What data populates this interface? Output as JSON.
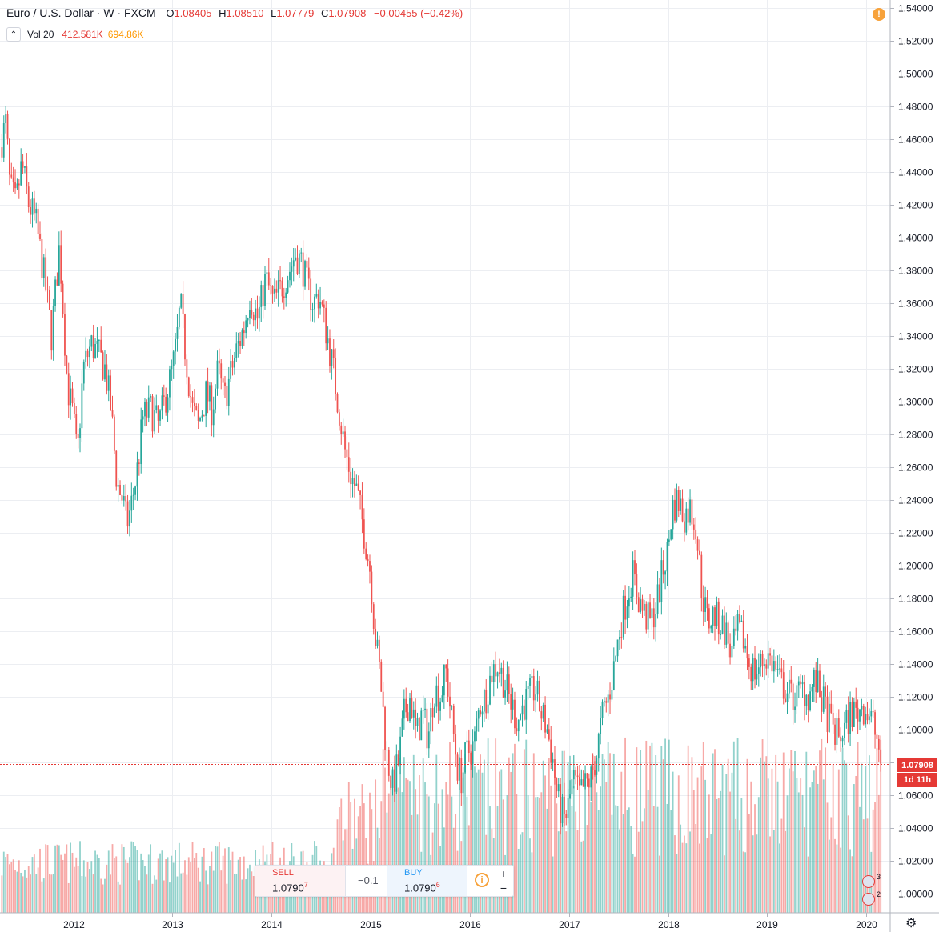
{
  "header": {
    "symbol": "Euro / U.S. Dollar · W · FXCM",
    "o_label": "O",
    "o_value": "1.08405",
    "h_label": "H",
    "h_value": "1.08510",
    "l_label": "L",
    "l_value": "1.07779",
    "c_label": "C",
    "c_value": "1.07908",
    "change": "−0.00455 (−0.42%)"
  },
  "volume_legend": {
    "label": "Vol 20",
    "value1": "412.581K",
    "value2": "694.86K"
  },
  "trade_panel": {
    "sell_label": "SELL",
    "sell_price": "1.0790",
    "sell_sup": "7",
    "spread": "−0.1",
    "buy_label": "BUY",
    "buy_price": "1.0790",
    "buy_sup": "6",
    "plus": "+",
    "minus": "−"
  },
  "price_tag": "1.07908",
  "countdown": "1d 11h",
  "events": {
    "count1": "3",
    "count2": "2"
  },
  "colors": {
    "up": "#26a69a",
    "down": "#ef5350",
    "grid": "#eceef2",
    "axis_text": "#131722"
  },
  "chart_data": {
    "type": "candlestick",
    "series_name": "Euro / U.S. Dollar",
    "y_axis": {
      "ylim": [
        0.9882,
        1.5448
      ],
      "ticks": [
        "1.54000",
        "1.52000",
        "1.50000",
        "1.48000",
        "1.46000",
        "1.44000",
        "1.42000",
        "1.40000",
        "1.38000",
        "1.36000",
        "1.34000",
        "1.32000",
        "1.30000",
        "1.28000",
        "1.26000",
        "1.24000",
        "1.22000",
        "1.20000",
        "1.18000",
        "1.16000",
        "1.14000",
        "1.12000",
        "1.10000",
        "1.08000",
        "1.06000",
        "1.04000",
        "1.02000",
        "1.00000"
      ]
    },
    "x_axis": {
      "labels": [
        "2012",
        "2013",
        "2014",
        "2015",
        "2016",
        "2017",
        "2018",
        "2019",
        "2020"
      ],
      "label_years": [
        2012,
        2013,
        2014,
        2015,
        2016,
        2017,
        2018,
        2019,
        2020
      ],
      "range_years": [
        2011.26,
        2020.24
      ]
    },
    "price_path": [
      [
        2011.26,
        1.455
      ],
      [
        2011.32,
        1.47
      ],
      [
        2011.36,
        1.43
      ],
      [
        2011.42,
        1.42
      ],
      [
        2011.48,
        1.445
      ],
      [
        2011.55,
        1.42
      ],
      [
        2011.62,
        1.41
      ],
      [
        2011.72,
        1.37
      ],
      [
        2011.78,
        1.34
      ],
      [
        2011.86,
        1.395
      ],
      [
        2011.94,
        1.31
      ],
      [
        2012.0,
        1.29
      ],
      [
        2012.04,
        1.265
      ],
      [
        2012.1,
        1.32
      ],
      [
        2012.18,
        1.335
      ],
      [
        2012.24,
        1.33
      ],
      [
        2012.32,
        1.32
      ],
      [
        2012.38,
        1.295
      ],
      [
        2012.44,
        1.25
      ],
      [
        2012.5,
        1.24
      ],
      [
        2012.54,
        1.225
      ],
      [
        2012.58,
        1.235
      ],
      [
        2012.65,
        1.26
      ],
      [
        2012.7,
        1.29
      ],
      [
        2012.78,
        1.295
      ],
      [
        2012.86,
        1.285
      ],
      [
        2012.92,
        1.3
      ],
      [
        2013.0,
        1.32
      ],
      [
        2013.04,
        1.335
      ],
      [
        2013.08,
        1.36
      ],
      [
        2013.12,
        1.335
      ],
      [
        2013.2,
        1.295
      ],
      [
        2013.26,
        1.285
      ],
      [
        2013.34,
        1.305
      ],
      [
        2013.4,
        1.295
      ],
      [
        2013.46,
        1.32
      ],
      [
        2013.52,
        1.3
      ],
      [
        2013.58,
        1.315
      ],
      [
        2013.64,
        1.33
      ],
      [
        2013.72,
        1.345
      ],
      [
        2013.78,
        1.365
      ],
      [
        2013.86,
        1.35
      ],
      [
        2013.94,
        1.375
      ],
      [
        2014.02,
        1.36
      ],
      [
        2014.1,
        1.37
      ],
      [
        2014.18,
        1.38
      ],
      [
        2014.24,
        1.39
      ],
      [
        2014.3,
        1.385
      ],
      [
        2014.36,
        1.37
      ],
      [
        2014.42,
        1.36
      ],
      [
        2014.48,
        1.365
      ],
      [
        2014.56,
        1.34
      ],
      [
        2014.62,
        1.32
      ],
      [
        2014.68,
        1.295
      ],
      [
        2014.74,
        1.27
      ],
      [
        2014.8,
        1.255
      ],
      [
        2014.86,
        1.245
      ],
      [
        2014.92,
        1.225
      ],
      [
        2015.0,
        1.195
      ],
      [
        2015.04,
        1.16
      ],
      [
        2015.1,
        1.13
      ],
      [
        2015.16,
        1.085
      ],
      [
        2015.22,
        1.065
      ],
      [
        2015.28,
        1.08
      ],
      [
        2015.34,
        1.11
      ],
      [
        2015.4,
        1.12
      ],
      [
        2015.46,
        1.095
      ],
      [
        2015.52,
        1.11
      ],
      [
        2015.58,
        1.095
      ],
      [
        2015.64,
        1.125
      ],
      [
        2015.7,
        1.12
      ],
      [
        2015.76,
        1.135
      ],
      [
        2015.82,
        1.105
      ],
      [
        2015.88,
        1.075
      ],
      [
        2015.92,
        1.07
      ],
      [
        2015.96,
        1.085
      ],
      [
        2016.04,
        1.09
      ],
      [
        2016.1,
        1.115
      ],
      [
        2016.16,
        1.12
      ],
      [
        2016.22,
        1.135
      ],
      [
        2016.28,
        1.14
      ],
      [
        2016.34,
        1.13
      ],
      [
        2016.42,
        1.115
      ],
      [
        2016.48,
        1.105
      ],
      [
        2016.54,
        1.115
      ],
      [
        2016.6,
        1.12
      ],
      [
        2016.66,
        1.125
      ],
      [
        2016.72,
        1.11
      ],
      [
        2016.78,
        1.1
      ],
      [
        2016.84,
        1.08
      ],
      [
        2016.88,
        1.06
      ],
      [
        2016.92,
        1.05
      ],
      [
        2016.96,
        1.045
      ],
      [
        2017.0,
        1.055
      ],
      [
        2017.04,
        1.07
      ],
      [
        2017.1,
        1.06
      ],
      [
        2017.16,
        1.065
      ],
      [
        2017.22,
        1.07
      ],
      [
        2017.28,
        1.085
      ],
      [
        2017.34,
        1.11
      ],
      [
        2017.4,
        1.12
      ],
      [
        2017.46,
        1.14
      ],
      [
        2017.52,
        1.165
      ],
      [
        2017.58,
        1.18
      ],
      [
        2017.64,
        1.195
      ],
      [
        2017.7,
        1.18
      ],
      [
        2017.76,
        1.17
      ],
      [
        2017.82,
        1.165
      ],
      [
        2017.88,
        1.175
      ],
      [
        2017.94,
        1.195
      ],
      [
        2018.0,
        1.21
      ],
      [
        2018.04,
        1.235
      ],
      [
        2018.1,
        1.24
      ],
      [
        2018.16,
        1.23
      ],
      [
        2018.22,
        1.235
      ],
      [
        2018.28,
        1.225
      ],
      [
        2018.34,
        1.185
      ],
      [
        2018.4,
        1.165
      ],
      [
        2018.46,
        1.17
      ],
      [
        2018.52,
        1.165
      ],
      [
        2018.58,
        1.16
      ],
      [
        2018.64,
        1.145
      ],
      [
        2018.7,
        1.16
      ],
      [
        2018.76,
        1.155
      ],
      [
        2018.82,
        1.14
      ],
      [
        2018.88,
        1.135
      ],
      [
        2018.94,
        1.14
      ],
      [
        2019.0,
        1.145
      ],
      [
        2019.06,
        1.14
      ],
      [
        2019.12,
        1.13
      ],
      [
        2019.18,
        1.125
      ],
      [
        2019.24,
        1.12
      ],
      [
        2019.3,
        1.12
      ],
      [
        2019.36,
        1.125
      ],
      [
        2019.42,
        1.12
      ],
      [
        2019.48,
        1.13
      ],
      [
        2019.54,
        1.12
      ],
      [
        2019.6,
        1.11
      ],
      [
        2019.66,
        1.1
      ],
      [
        2019.72,
        1.095
      ],
      [
        2019.78,
        1.1
      ],
      [
        2019.84,
        1.11
      ],
      [
        2019.9,
        1.11
      ],
      [
        2019.96,
        1.115
      ],
      [
        2020.02,
        1.11
      ],
      [
        2020.06,
        1.105
      ],
      [
        2020.1,
        1.095
      ],
      [
        2020.14,
        1.085
      ],
      [
        2020.16,
        1.079
      ]
    ],
    "last_price": 1.07908
  }
}
